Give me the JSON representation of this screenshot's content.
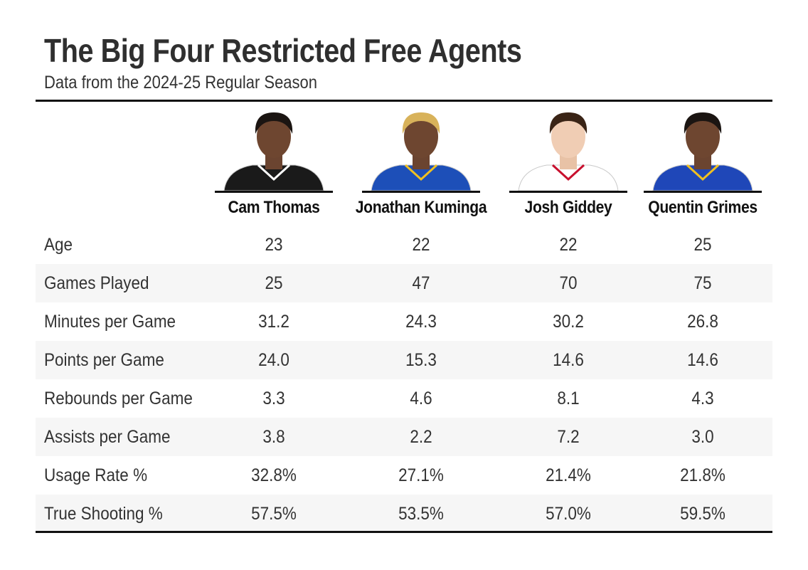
{
  "chart_data": {
    "type": "table",
    "title": "The Big Four Restricted Free Agents",
    "subtitle": "Data from the 2024-25 Regular Season",
    "columns": [
      "Cam Thomas",
      "Jonathan Kuminga",
      "Josh Giddey",
      "Quentin Grimes"
    ],
    "jersey_colors": [
      "#1a1a1a",
      "#1d4fb8",
      "#ffffff",
      "#1f47b8"
    ],
    "rows": [
      {
        "label": "Age",
        "values": [
          "23",
          "22",
          "22",
          "25"
        ]
      },
      {
        "label": "Games Played",
        "values": [
          "25",
          "47",
          "70",
          "75"
        ]
      },
      {
        "label": "Minutes per Game",
        "values": [
          "31.2",
          "24.3",
          "30.2",
          "26.8"
        ]
      },
      {
        "label": "Points per Game",
        "values": [
          "24.0",
          "15.3",
          "14.6",
          "14.6"
        ]
      },
      {
        "label": "Rebounds per Game",
        "values": [
          "3.3",
          "4.6",
          "8.1",
          "4.3"
        ]
      },
      {
        "label": "Assists per Game",
        "values": [
          "3.8",
          "2.2",
          "7.2",
          "3.0"
        ]
      },
      {
        "label": "Usage Rate %",
        "values": [
          "32.8%",
          "27.1%",
          "21.4%",
          "21.8%"
        ]
      },
      {
        "label": "True Shooting %",
        "values": [
          "57.5%",
          "53.5%",
          "57.0%",
          "59.5%"
        ]
      }
    ]
  }
}
